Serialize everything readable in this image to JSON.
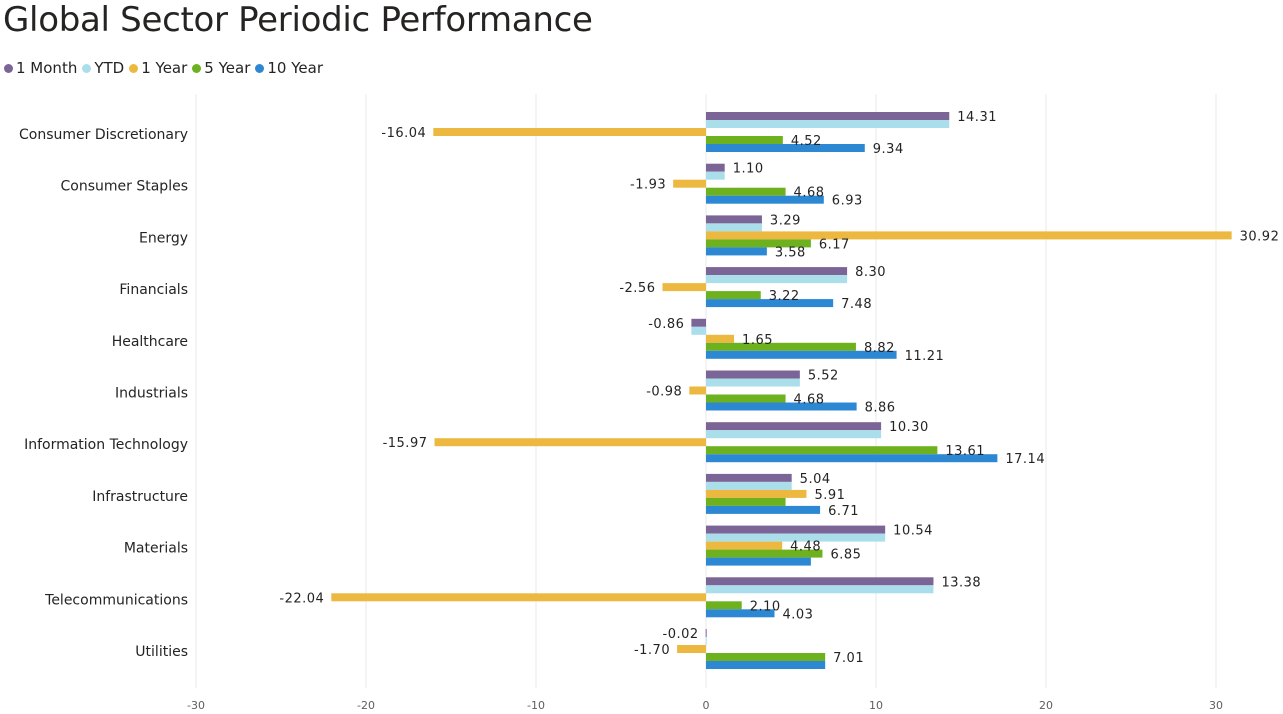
{
  "chart_data": {
    "type": "bar",
    "orientation": "horizontal",
    "title": "Global Sector Periodic Performance",
    "categories": [
      "Consumer Discretionary",
      "Consumer Staples",
      "Energy",
      "Financials",
      "Healthcare",
      "Industrials",
      "Information Technology",
      "Infrastructure",
      "Materials",
      "Telecommunications",
      "Utilities"
    ],
    "series": [
      {
        "name": "1 Month",
        "color": "#7B6496",
        "values": [
          14.31,
          1.1,
          3.29,
          8.3,
          -0.86,
          5.52,
          10.3,
          5.04,
          10.54,
          13.38,
          -0.02
        ],
        "labels": [
          "14.31",
          "1.10",
          "3.29",
          "8.30",
          "-0.86",
          "5.52",
          "10.30",
          "5.04",
          "10.54",
          "13.38",
          "-0.02"
        ]
      },
      {
        "name": "YTD",
        "color": "#A9DEEA",
        "values": [
          14.31,
          1.1,
          3.29,
          8.3,
          -0.86,
          5.52,
          10.3,
          5.04,
          10.54,
          13.38,
          -0.02
        ],
        "labels": []
      },
      {
        "name": "1 Year",
        "color": "#ECB840",
        "values": [
          -16.04,
          -1.93,
          30.92,
          -2.56,
          1.65,
          -0.98,
          -15.97,
          5.91,
          4.48,
          -22.04,
          -1.7
        ],
        "labels": [
          "-16.04",
          "-1.93",
          "30.92",
          "-2.56",
          "1.65",
          "-0.98",
          "-15.97",
          "5.91",
          "4.48",
          "-22.04",
          "-1.70"
        ]
      },
      {
        "name": "5 Year",
        "color": "#6DB21E",
        "values": [
          4.52,
          4.68,
          6.17,
          3.22,
          8.82,
          4.68,
          13.61,
          4.68,
          6.85,
          2.1,
          7.01
        ],
        "labels": [
          "4.52",
          "4.68",
          "6.17",
          "3.22",
          "8.82",
          "4.68",
          "13.61",
          "",
          "6.85",
          "2.10",
          "7.01"
        ]
      },
      {
        "name": "10 Year",
        "color": "#2D88D4",
        "values": [
          9.34,
          6.93,
          3.58,
          7.48,
          11.21,
          8.86,
          17.14,
          6.71,
          6.17,
          4.03,
          7.01
        ],
        "labels": [
          "9.34",
          "6.93",
          "3.58",
          "7.48",
          "11.21",
          "8.86",
          "17.14",
          "6.71",
          "",
          "4.03",
          ""
        ]
      }
    ],
    "xlim": [
      -30,
      30
    ],
    "xticks": [
      "-30",
      "-20",
      "-10",
      "0",
      "10",
      "20",
      "30"
    ],
    "grid": true,
    "legend_position": "top-left"
  }
}
